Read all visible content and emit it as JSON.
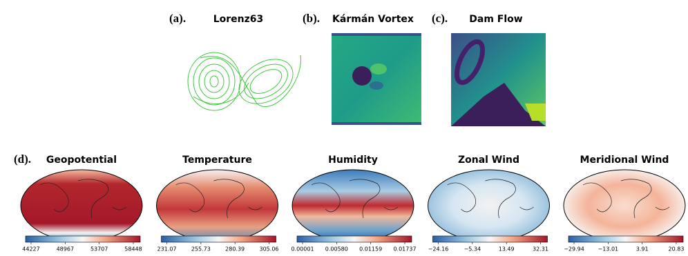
{
  "figure": {
    "top_panels": [
      {
        "label": "(a).",
        "title": "Lorenz63"
      },
      {
        "label": "(b).",
        "title": "Kármán Vortex"
      },
      {
        "label": "(c).",
        "title": "Dam Flow"
      }
    ],
    "bottom_label": "(d).",
    "maps": [
      {
        "title": "Geopotential",
        "ticks": [
          "44227",
          "48967",
          "53707",
          "58448"
        ]
      },
      {
        "title": "Temperature",
        "ticks": [
          "231.07",
          "255.73",
          "280.39",
          "305.06"
        ]
      },
      {
        "title": "Humidity",
        "ticks": [
          "0.00001",
          "0.00580",
          "0.01159",
          "0.01737"
        ]
      },
      {
        "title": "Zonal Wind",
        "ticks": [
          "−24.16",
          "−5.34",
          "13.49",
          "32.31"
        ]
      },
      {
        "title": "Meridional Wind",
        "ticks": [
          "−29.94",
          "−13.01",
          "3.91",
          "20.83"
        ]
      }
    ]
  }
}
